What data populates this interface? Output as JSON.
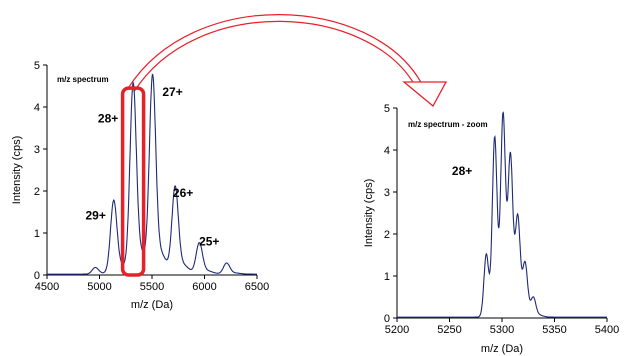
{
  "colors": {
    "trace": "#1f2a78",
    "axis": "#000000",
    "highlight": "#e8202a",
    "arrow": "#e8202a"
  },
  "chart_data": [
    {
      "type": "line",
      "panel_label": "m/z spectrum",
      "xlabel": "m/z (Da)",
      "ylabel": "Intensity (cps)",
      "xlim": [
        4500,
        6500
      ],
      "ylim": [
        0,
        5
      ],
      "xticks": [
        "4500",
        "5000",
        "5500",
        "6000",
        "6500"
      ],
      "yticks": [
        "0",
        "1",
        "2",
        "3",
        "4",
        "5"
      ],
      "grid": false,
      "peaks": [
        {
          "x": 4960,
          "y": 0.15
        },
        {
          "x": 5135,
          "y": 1.65
        },
        {
          "x": 5320,
          "y": 4.25
        },
        {
          "x": 5505,
          "y": 4.4
        },
        {
          "x": 5720,
          "y": 1.95
        },
        {
          "x": 5950,
          "y": 0.7
        },
        {
          "x": 6210,
          "y": 0.25
        }
      ],
      "charge_labels": [
        {
          "text": "29+",
          "x": 5135,
          "y": 1.65
        },
        {
          "text": "28+",
          "x": 5320,
          "y": 4.25
        },
        {
          "text": "27+",
          "x": 5505,
          "y": 4.4
        },
        {
          "text": "26+",
          "x": 5720,
          "y": 1.95
        },
        {
          "text": "25+",
          "x": 5950,
          "y": 0.7
        }
      ],
      "highlight_range": {
        "x": [
          5220,
          5420
        ],
        "y": [
          0,
          4.45
        ]
      }
    },
    {
      "type": "line",
      "panel_label": "m/z spectrum - zoom",
      "xlabel": "m/z (Da)",
      "ylabel": "Intensity (cps)",
      "xlim": [
        5200,
        5400
      ],
      "ylim": [
        0,
        5
      ],
      "xticks": [
        "5200",
        "5250",
        "5300",
        "5350",
        "5400"
      ],
      "yticks": [
        "0",
        "1",
        "2",
        "3",
        "4",
        "5"
      ],
      "grid": false,
      "peaks": [
        {
          "x": 5285,
          "y": 1.4
        },
        {
          "x": 5293,
          "y": 3.9
        },
        {
          "x": 5301,
          "y": 4.2
        },
        {
          "x": 5308,
          "y": 3.2
        },
        {
          "x": 5315,
          "y": 1.9
        },
        {
          "x": 5322,
          "y": 1.0
        },
        {
          "x": 5330,
          "y": 0.35
        }
      ],
      "charge_labels": [
        {
          "text": "28+",
          "x": 5262,
          "y": 3.4
        }
      ]
    }
  ]
}
